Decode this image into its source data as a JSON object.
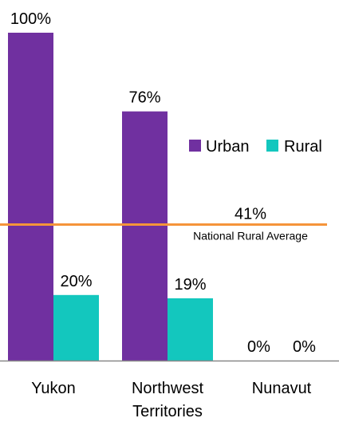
{
  "chart_data": {
    "type": "bar",
    "categories": [
      [
        "Yukon"
      ],
      [
        "Northwest",
        "Territories"
      ],
      [
        "Nunavut"
      ]
    ],
    "series": [
      {
        "name": "Urban",
        "values": [
          100,
          76,
          0
        ],
        "labels": [
          "100%",
          "76%",
          "0%"
        ],
        "color": "#7030a0"
      },
      {
        "name": "Rural",
        "values": [
          20,
          19,
          0
        ],
        "labels": [
          "20%",
          "19%",
          "0%"
        ],
        "color": "#13c7be"
      }
    ],
    "ylim": [
      0,
      100
    ],
    "reference_line": {
      "value": 41,
      "value_label": "41%",
      "label": "National Rural Average",
      "color": "#f5943a"
    },
    "axis_color": "#888888",
    "legend": {
      "position": "right"
    }
  }
}
